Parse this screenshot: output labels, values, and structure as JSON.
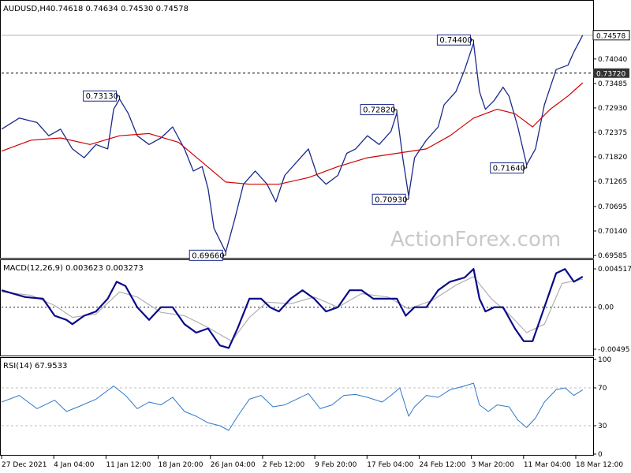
{
  "watermark": "ActionForex.com",
  "colors": {
    "price": "#1a2a8a",
    "ma": "#d00000",
    "macd": "#0a0a8a",
    "signal": "#b0b0b0",
    "rsi": "#2f78c8",
    "grid": "#000000"
  },
  "chart_data": [
    {
      "type": "line",
      "title": "AUDUSD,H4",
      "ohlc_text": "0.74618 0.74634 0.74530 0.74578",
      "ylim": [
        0.6955,
        0.7502
      ],
      "yticks": [
        "0.74040",
        "0.73485",
        "0.72930",
        "0.72375",
        "0.71820",
        "0.71265",
        "0.70695",
        "0.70140",
        "0.69585"
      ],
      "ytick_values": [
        0.7404,
        0.73485,
        0.7293,
        0.72375,
        0.7182,
        0.71265,
        0.70695,
        0.7014,
        0.69585
      ],
      "last_price": {
        "label": "0.74578",
        "value": 0.74578
      },
      "level": {
        "label": "0.73720",
        "value": 0.7372
      },
      "annotations": [
        {
          "label": "0.73130",
          "t": 0.2,
          "value": 0.7313
        },
        {
          "label": "0.69660",
          "t": 0.38,
          "value": 0.6966
        },
        {
          "label": "0.72820",
          "t": 0.67,
          "value": 0.7282
        },
        {
          "label": "0.70930",
          "t": 0.69,
          "value": 0.7093
        },
        {
          "label": "0.74400",
          "t": 0.8,
          "value": 0.744
        },
        {
          "label": "0.71640",
          "t": 0.89,
          "value": 0.7164
        }
      ],
      "series": [
        {
          "values": [
            [
              0.0,
              0.7245
            ],
            [
              0.03,
              0.727
            ],
            [
              0.06,
              0.726
            ],
            [
              0.08,
              0.723
            ],
            [
              0.1,
              0.7245
            ],
            [
              0.12,
              0.72
            ],
            [
              0.14,
              0.718
            ],
            [
              0.16,
              0.721
            ],
            [
              0.18,
              0.72
            ],
            [
              0.19,
              0.729
            ],
            [
              0.2,
              0.7313
            ],
            [
              0.215,
              0.728
            ],
            [
              0.23,
              0.723
            ],
            [
              0.25,
              0.721
            ],
            [
              0.27,
              0.7225
            ],
            [
              0.29,
              0.725
            ],
            [
              0.31,
              0.72
            ],
            [
              0.325,
              0.715
            ],
            [
              0.34,
              0.716
            ],
            [
              0.35,
              0.711
            ],
            [
              0.36,
              0.702
            ],
            [
              0.38,
              0.6966
            ],
            [
              0.395,
              0.704
            ],
            [
              0.41,
              0.712
            ],
            [
              0.43,
              0.715
            ],
            [
              0.45,
              0.712
            ],
            [
              0.465,
              0.708
            ],
            [
              0.48,
              0.714
            ],
            [
              0.5,
              0.717
            ],
            [
              0.52,
              0.72
            ],
            [
              0.535,
              0.714
            ],
            [
              0.55,
              0.712
            ],
            [
              0.57,
              0.714
            ],
            [
              0.585,
              0.719
            ],
            [
              0.6,
              0.72
            ],
            [
              0.62,
              0.723
            ],
            [
              0.64,
              0.721
            ],
            [
              0.66,
              0.724
            ],
            [
              0.67,
              0.7282
            ],
            [
              0.68,
              0.718
            ],
            [
              0.69,
              0.7093
            ],
            [
              0.7,
              0.718
            ],
            [
              0.72,
              0.722
            ],
            [
              0.74,
              0.725
            ],
            [
              0.75,
              0.73
            ],
            [
              0.77,
              0.733
            ],
            [
              0.785,
              0.738
            ],
            [
              0.8,
              0.744
            ],
            [
              0.81,
              0.733
            ],
            [
              0.82,
              0.729
            ],
            [
              0.835,
              0.731
            ],
            [
              0.85,
              0.734
            ],
            [
              0.86,
              0.732
            ],
            [
              0.875,
              0.725
            ],
            [
              0.89,
              0.7164
            ],
            [
              0.905,
              0.72
            ],
            [
              0.92,
              0.73
            ],
            [
              0.94,
              0.738
            ],
            [
              0.96,
              0.739
            ],
            [
              0.97,
              0.742
            ],
            [
              0.985,
              0.7458
            ]
          ]
        },
        {
          "name": "",
          "role": "ma",
          "values": [
            [
              0.0,
              0.7195
            ],
            [
              0.05,
              0.722
            ],
            [
              0.1,
              0.7225
            ],
            [
              0.15,
              0.721
            ],
            [
              0.2,
              0.723
            ],
            [
              0.25,
              0.7235
            ],
            [
              0.3,
              0.7215
            ],
            [
              0.34,
              0.717
            ],
            [
              0.38,
              0.7125
            ],
            [
              0.42,
              0.712
            ],
            [
              0.47,
              0.712
            ],
            [
              0.52,
              0.7135
            ],
            [
              0.57,
              0.716
            ],
            [
              0.62,
              0.718
            ],
            [
              0.67,
              0.719
            ],
            [
              0.72,
              0.72
            ],
            [
              0.76,
              0.723
            ],
            [
              0.8,
              0.727
            ],
            [
              0.84,
              0.729
            ],
            [
              0.87,
              0.728
            ],
            [
              0.9,
              0.725
            ],
            [
              0.93,
              0.729
            ],
            [
              0.96,
              0.732
            ],
            [
              0.985,
              0.735
            ]
          ]
        }
      ]
    },
    {
      "type": "line",
      "title": "MACD(12,26,9) 0.003623 0.003273",
      "ylim": [
        -0.0056,
        0.0048
      ],
      "yticks": [
        "0.004517",
        "0.00",
        "-0.00495"
      ],
      "ytick_values": [
        0.004517,
        0.0,
        -0.00495
      ],
      "series": [
        {
          "role": "macd",
          "values": [
            [
              0.0,
              0.002
            ],
            [
              0.04,
              0.0012
            ],
            [
              0.07,
              0.001
            ],
            [
              0.09,
              -0.001
            ],
            [
              0.11,
              -0.0015
            ],
            [
              0.12,
              -0.002
            ],
            [
              0.14,
              -0.001
            ],
            [
              0.16,
              -0.0005
            ],
            [
              0.18,
              0.001
            ],
            [
              0.195,
              0.003
            ],
            [
              0.21,
              0.0025
            ],
            [
              0.23,
              0.0
            ],
            [
              0.25,
              -0.0015
            ],
            [
              0.27,
              0.0
            ],
            [
              0.29,
              0.0
            ],
            [
              0.31,
              -0.002
            ],
            [
              0.33,
              -0.003
            ],
            [
              0.35,
              -0.0025
            ],
            [
              0.37,
              -0.0045
            ],
            [
              0.385,
              -0.0048
            ],
            [
              0.4,
              -0.0025
            ],
            [
              0.42,
              0.001
            ],
            [
              0.44,
              0.001
            ],
            [
              0.455,
              0.0
            ],
            [
              0.47,
              -0.0005
            ],
            [
              0.49,
              0.001
            ],
            [
              0.51,
              0.002
            ],
            [
              0.53,
              0.001
            ],
            [
              0.55,
              -0.0005
            ],
            [
              0.57,
              0.0
            ],
            [
              0.59,
              0.002
            ],
            [
              0.61,
              0.002
            ],
            [
              0.63,
              0.001
            ],
            [
              0.655,
              0.001
            ],
            [
              0.67,
              0.001
            ],
            [
              0.685,
              -0.001
            ],
            [
              0.7,
              0.0
            ],
            [
              0.72,
              0.0
            ],
            [
              0.74,
              0.002
            ],
            [
              0.76,
              0.003
            ],
            [
              0.785,
              0.0035
            ],
            [
              0.8,
              0.0045
            ],
            [
              0.81,
              0.001
            ],
            [
              0.82,
              -0.0005
            ],
            [
              0.835,
              0.0
            ],
            [
              0.85,
              0.0
            ],
            [
              0.87,
              -0.0025
            ],
            [
              0.885,
              -0.004
            ],
            [
              0.9,
              -0.004
            ],
            [
              0.92,
              0.0
            ],
            [
              0.94,
              0.004
            ],
            [
              0.955,
              0.0045
            ],
            [
              0.97,
              0.003
            ],
            [
              0.985,
              0.0036
            ]
          ]
        },
        {
          "role": "signal",
          "values": [
            [
              0.0,
              0.0018
            ],
            [
              0.05,
              0.0014
            ],
            [
              0.09,
              0.0002
            ],
            [
              0.12,
              -0.0012
            ],
            [
              0.16,
              -0.0008
            ],
            [
              0.2,
              0.0018
            ],
            [
              0.23,
              0.0012
            ],
            [
              0.27,
              -0.0006
            ],
            [
              0.31,
              -0.001
            ],
            [
              0.35,
              -0.0024
            ],
            [
              0.39,
              -0.004
            ],
            [
              0.42,
              -0.0012
            ],
            [
              0.45,
              0.0006
            ],
            [
              0.49,
              0.0004
            ],
            [
              0.53,
              0.0012
            ],
            [
              0.57,
              0.0
            ],
            [
              0.61,
              0.0016
            ],
            [
              0.655,
              0.0012
            ],
            [
              0.69,
              -0.0002
            ],
            [
              0.73,
              0.0008
            ],
            [
              0.77,
              0.0026
            ],
            [
              0.8,
              0.0036
            ],
            [
              0.83,
              0.001
            ],
            [
              0.86,
              -0.0008
            ],
            [
              0.89,
              -0.003
            ],
            [
              0.92,
              -0.002
            ],
            [
              0.95,
              0.0028
            ],
            [
              0.985,
              0.0033
            ]
          ]
        }
      ]
    },
    {
      "type": "line",
      "title": "RSI(14) 67.9533",
      "ylim": [
        0,
        100
      ],
      "yticks": [
        "100",
        "70",
        "30",
        "0"
      ],
      "ytick_values": [
        100,
        70,
        30,
        0
      ],
      "levels": [
        70,
        30
      ],
      "series": [
        {
          "role": "rsi",
          "values": [
            [
              0.0,
              55
            ],
            [
              0.03,
              62
            ],
            [
              0.06,
              48
            ],
            [
              0.09,
              57
            ],
            [
              0.11,
              45
            ],
            [
              0.13,
              50
            ],
            [
              0.16,
              58
            ],
            [
              0.19,
              72
            ],
            [
              0.21,
              62
            ],
            [
              0.23,
              48
            ],
            [
              0.25,
              55
            ],
            [
              0.27,
              52
            ],
            [
              0.29,
              60
            ],
            [
              0.31,
              45
            ],
            [
              0.33,
              40
            ],
            [
              0.35,
              33
            ],
            [
              0.37,
              30
            ],
            [
              0.385,
              25
            ],
            [
              0.4,
              40
            ],
            [
              0.42,
              58
            ],
            [
              0.44,
              62
            ],
            [
              0.46,
              50
            ],
            [
              0.48,
              52
            ],
            [
              0.5,
              58
            ],
            [
              0.52,
              64
            ],
            [
              0.54,
              48
            ],
            [
              0.56,
              52
            ],
            [
              0.58,
              62
            ],
            [
              0.6,
              63
            ],
            [
              0.62,
              60
            ],
            [
              0.645,
              55
            ],
            [
              0.66,
              62
            ],
            [
              0.675,
              70
            ],
            [
              0.69,
              40
            ],
            [
              0.7,
              50
            ],
            [
              0.72,
              62
            ],
            [
              0.74,
              60
            ],
            [
              0.76,
              68
            ],
            [
              0.785,
              72
            ],
            [
              0.8,
              75
            ],
            [
              0.81,
              52
            ],
            [
              0.825,
              45
            ],
            [
              0.84,
              52
            ],
            [
              0.86,
              50
            ],
            [
              0.875,
              36
            ],
            [
              0.89,
              28
            ],
            [
              0.905,
              38
            ],
            [
              0.92,
              55
            ],
            [
              0.94,
              68
            ],
            [
              0.955,
              70
            ],
            [
              0.97,
              62
            ],
            [
              0.985,
              68
            ]
          ]
        }
      ]
    }
  ],
  "xaxis": [
    "27 Dec 2021",
    "4 Jan 04:00",
    "11 Jan 12:00",
    "18 Jan 20:00",
    "26 Jan 04:00",
    "2 Feb 12:00",
    "9 Feb 20:00",
    "17 Feb 04:00",
    "24 Feb 12:00",
    "3 Mar 20:00",
    "11 Mar 04:00",
    "18 Mar 12:00"
  ]
}
